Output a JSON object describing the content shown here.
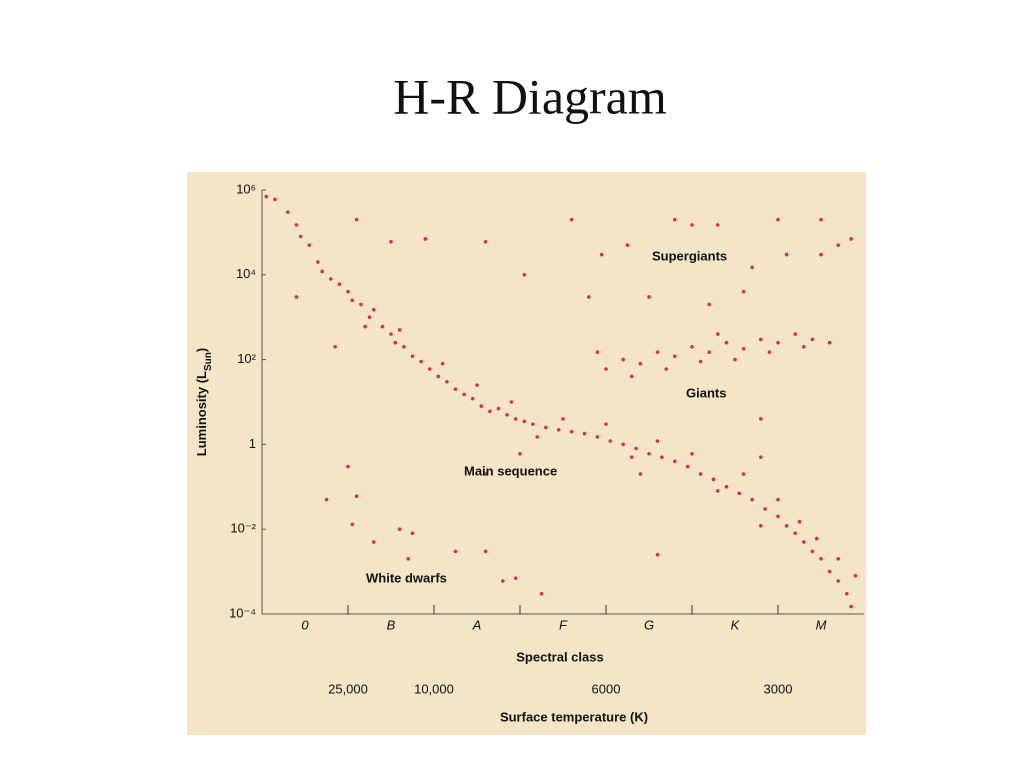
{
  "chart_data": {
    "type": "scatter",
    "title": "H-R Diagram",
    "y_label": [
      "Luminosity (L",
      "Sun",
      ")"
    ],
    "x_label": "Spectral class",
    "x2_label": "Surface temperature (K)",
    "log_y": true,
    "color": "#d8304a",
    "background": "#f4e5c6",
    "spectral_classes": [
      "0",
      "B",
      "A",
      "F",
      "G",
      "K",
      "M"
    ],
    "xlim": [
      0,
      7
    ],
    "x2ticks": [
      {
        "value": 1,
        "label": "25,000"
      },
      {
        "value": 2,
        "label": "10,000"
      },
      {
        "value": 4,
        "label": "6000"
      },
      {
        "value": 6,
        "label": "3000"
      }
    ],
    "ylim": [
      0.0001,
      1000000
    ],
    "yticks": [
      {
        "value": 0.0001,
        "label": "10⁻⁴"
      },
      {
        "value": 0.01,
        "label": "10⁻²"
      },
      1,
      {
        "value": 100,
        "label": "10²"
      },
      {
        "value": 10000,
        "label": "10⁴"
      },
      {
        "value": 1000000,
        "label": "10⁶"
      }
    ],
    "annotations": [
      "Supergiants",
      "Giants",
      "Main sequence",
      "White dwarfs"
    ],
    "x": [
      0.05,
      0.15,
      0.3,
      0.4,
      0.45,
      0.55,
      0.65,
      0.7,
      0.8,
      0.9,
      1.0,
      1.05,
      1.15,
      1.25,
      1.3,
      1.4,
      1.5,
      1.55,
      1.65,
      1.75,
      1.85,
      1.95,
      2.05,
      2.15,
      2.25,
      2.35,
      2.45,
      2.55,
      2.65,
      2.75,
      2.85,
      2.95,
      3.05,
      3.15,
      3.3,
      3.45,
      3.6,
      3.75,
      3.9,
      4.05,
      4.2,
      4.35,
      4.5,
      4.65,
      4.8,
      4.95,
      5.1,
      5.25,
      5.4,
      5.55,
      5.7,
      5.85,
      6.0,
      6.1,
      6.2,
      6.3,
      6.4,
      6.5,
      6.6,
      6.7,
      6.8,
      6.85,
      1.2,
      1.6,
      2.1,
      2.5,
      2.9,
      3.2,
      3.5,
      4.0,
      4.3,
      4.6,
      5.0,
      5.3,
      5.6,
      6.0,
      6.25,
      6.45,
      6.7,
      6.9,
      5.8,
      4.4,
      4.0,
      4.2,
      4.4,
      4.6,
      4.8,
      5.0,
      5.2,
      5.4,
      5.6,
      5.8,
      6.0,
      6.2,
      6.4,
      6.6,
      4.3,
      4.7,
      5.1,
      5.5,
      5.9,
      6.3,
      3.9,
      5.3,
      3.6,
      4.8,
      5.0,
      5.3,
      6.0,
      6.5,
      6.7,
      6.85,
      3.95,
      4.25,
      5.7,
      6.1,
      4.5,
      5.2,
      5.6,
      6.5,
      3.05,
      3.8,
      1.1,
      1.5,
      1.9,
      2.6,
      0.4,
      0.85,
      1.0,
      0.75,
      1.1,
      2.6,
      3.0,
      5.8,
      5.8,
      1.05,
      1.3,
      1.6,
      1.75,
      1.7,
      2.25,
      2.6,
      2.95,
      2.8,
      3.25,
      4.6
    ],
    "y": [
      700000,
      600000,
      300000,
      150000,
      80000,
      50000,
      20000,
      12000,
      8000,
      6000,
      4000,
      2500,
      2000,
      1000,
      1500,
      600,
      400,
      250,
      200,
      120,
      90,
      60,
      40,
      30,
      20,
      15,
      12,
      8,
      6,
      7,
      5,
      4,
      3.5,
      3,
      2.5,
      2.2,
      2,
      1.8,
      1.5,
      1.2,
      1,
      0.8,
      0.6,
      0.5,
      0.4,
      0.3,
      0.2,
      0.15,
      0.1,
      0.07,
      0.05,
      0.03,
      0.02,
      0.012,
      0.008,
      0.005,
      0.003,
      0.002,
      0.001,
      0.0006,
      0.0003,
      0.00015,
      600,
      500,
      80,
      25,
      10,
      1.5,
      4,
      3,
      0.5,
      1.2,
      0.6,
      0.08,
      0.2,
      0.05,
      0.015,
      0.006,
      0.002,
      0.0008,
      0.012,
      0.2,
      60,
      100,
      80,
      150,
      120,
      200,
      150,
      250,
      180,
      300,
      250,
      400,
      300,
      250,
      40,
      60,
      90,
      100,
      150,
      200,
      150,
      400,
      200000,
      200000,
      150000,
      150000,
      200000,
      200000,
      50000,
      70000,
      30000,
      50000,
      15000,
      30000,
      3000,
      2000,
      4000,
      30000,
      10000,
      3000,
      200000,
      60000,
      70000,
      60000,
      3000,
      200,
      0.3,
      0.05,
      0.06,
      0.2,
      0.6,
      4,
      0.5,
      0.013,
      0.005,
      0.01,
      0.008,
      0.002,
      0.003,
      0.003,
      0.0007,
      0.0006,
      0.0003,
      0.0025
    ]
  }
}
